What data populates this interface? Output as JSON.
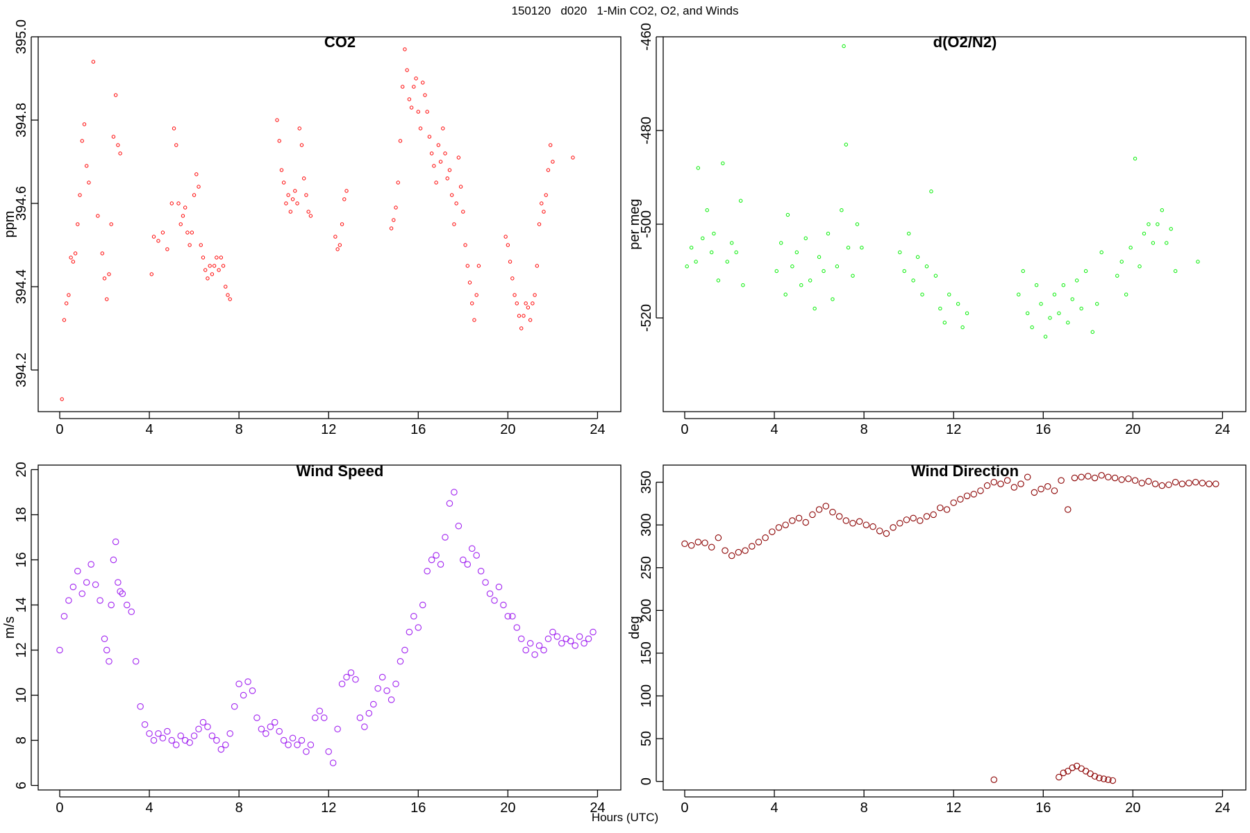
{
  "figure": {
    "title": "150120   d020   1-Min CO2, O2, and Winds",
    "xlabel": "Hours (UTC)"
  },
  "chart_data": [
    {
      "type": "scatter",
      "title": "CO2",
      "xlabel": "",
      "ylabel": "ppm",
      "color": "#ff0000",
      "marker": "small-open-circle",
      "xlim": [
        -0.96,
        25.04
      ],
      "ylim": [
        394.1,
        395.0
      ],
      "xticks": [
        "0",
        "4",
        "8",
        "12",
        "16",
        "20",
        "24"
      ],
      "yticks": [
        "394.2",
        "394.4",
        "394.6",
        "394.8",
        "395.0"
      ],
      "yticks_rotated": true,
      "series": [
        {
          "x": [
            0.1,
            0.2,
            0.3,
            0.4,
            0.5,
            0.6,
            0.7,
            0.8,
            0.9,
            1.0,
            1.1,
            1.2,
            1.3,
            1.5,
            1.7,
            1.9,
            2.0,
            2.1,
            2.2,
            2.3,
            2.4,
            2.5,
            2.6,
            2.7
          ],
          "y": [
            394.13,
            394.32,
            394.36,
            394.38,
            394.47,
            394.46,
            394.48,
            394.55,
            394.62,
            394.75,
            394.79,
            394.69,
            394.65,
            394.94,
            394.57,
            394.48,
            394.42,
            394.37,
            394.43,
            394.55,
            394.76,
            394.86,
            394.74,
            394.72
          ]
        },
        {
          "x": [
            4.1,
            4.2,
            4.4,
            4.6,
            4.8,
            5.0,
            5.1,
            5.2,
            5.3,
            5.4,
            5.5,
            5.6,
            5.7,
            5.8,
            5.9,
            6.0,
            6.1,
            6.2,
            6.3,
            6.4,
            6.5,
            6.6,
            6.7,
            6.8,
            6.9,
            7.0,
            7.1,
            7.2,
            7.3,
            7.4,
            7.5,
            7.6
          ],
          "y": [
            394.43,
            394.52,
            394.51,
            394.53,
            394.49,
            394.6,
            394.78,
            394.74,
            394.6,
            394.55,
            394.57,
            394.59,
            394.53,
            394.5,
            394.53,
            394.62,
            394.67,
            394.64,
            394.5,
            394.47,
            394.44,
            394.42,
            394.45,
            394.43,
            394.45,
            394.47,
            394.44,
            394.47,
            394.45,
            394.4,
            394.38,
            394.37
          ]
        },
        {
          "x": [
            9.7,
            9.8,
            9.9,
            10.0,
            10.1,
            10.2,
            10.3,
            10.4,
            10.5,
            10.6,
            10.7,
            10.8,
            10.9,
            11.0,
            11.1,
            11.2,
            12.3,
            12.4,
            12.5,
            12.6,
            12.7,
            12.8
          ],
          "y": [
            394.8,
            394.75,
            394.68,
            394.65,
            394.6,
            394.62,
            394.58,
            394.61,
            394.63,
            394.6,
            394.78,
            394.74,
            394.66,
            394.62,
            394.58,
            394.57,
            394.52,
            394.49,
            394.5,
            394.55,
            394.61,
            394.63
          ]
        },
        {
          "x": [
            14.8,
            14.9,
            15.0,
            15.1,
            15.2,
            15.3,
            15.4,
            15.5,
            15.6,
            15.7,
            15.8,
            15.9,
            16.0,
            16.1,
            16.2,
            16.3,
            16.4,
            16.5,
            16.6,
            16.7,
            16.8,
            16.9,
            17.0,
            17.1,
            17.2,
            17.3,
            17.4,
            17.5,
            17.6,
            17.7,
            17.8,
            17.9,
            18.0,
            18.1,
            18.2,
            18.3,
            18.4,
            18.5,
            18.6,
            18.7
          ],
          "y": [
            394.54,
            394.56,
            394.59,
            394.65,
            394.75,
            394.88,
            394.97,
            394.92,
            394.85,
            394.83,
            394.88,
            394.9,
            394.82,
            394.78,
            394.89,
            394.86,
            394.82,
            394.76,
            394.72,
            394.69,
            394.65,
            394.74,
            394.7,
            394.78,
            394.72,
            394.66,
            394.68,
            394.62,
            394.55,
            394.6,
            394.71,
            394.64,
            394.58,
            394.5,
            394.45,
            394.41,
            394.36,
            394.32,
            394.38,
            394.45
          ]
        },
        {
          "x": [
            19.9,
            20.0,
            20.1,
            20.2,
            20.3,
            20.4,
            20.5,
            20.6,
            20.7,
            20.8,
            20.9,
            21.0,
            21.1,
            21.2,
            21.3,
            21.4,
            21.5,
            21.6,
            21.7,
            21.8,
            21.9,
            22.0,
            22.9
          ],
          "y": [
            394.52,
            394.5,
            394.46,
            394.42,
            394.38,
            394.36,
            394.33,
            394.3,
            394.33,
            394.36,
            394.35,
            394.32,
            394.36,
            394.38,
            394.45,
            394.55,
            394.6,
            394.58,
            394.62,
            394.68,
            394.74,
            394.7,
            394.71
          ]
        }
      ]
    },
    {
      "type": "scatter",
      "title": "d(O2/N2)",
      "xlabel": "",
      "ylabel": "per meg",
      "color": "#00ee00",
      "marker": "small-open-circle",
      "xlim": [
        -0.96,
        25.04
      ],
      "ylim": [
        -540,
        -460
      ],
      "xticks": [
        "0",
        "4",
        "8",
        "12",
        "16",
        "20",
        "24"
      ],
      "yticks": [
        "-520",
        "-500",
        "-480",
        "-460"
      ],
      "yticks_rotated": true,
      "series": [
        {
          "x": [
            0.1,
            0.3,
            0.5,
            0.6,
            0.8,
            1.0,
            1.2,
            1.3,
            1.5,
            1.7,
            1.9,
            2.1,
            2.3,
            2.5,
            2.6
          ],
          "y": [
            -509,
            -505,
            -508,
            -488,
            -503,
            -497,
            -506,
            -502,
            -512,
            -487,
            -508,
            -504,
            -506,
            -495,
            -513
          ]
        },
        {
          "x": [
            4.1,
            4.3,
            4.5,
            4.6,
            4.8,
            5.0,
            5.2,
            5.4,
            5.6,
            5.8,
            6.0,
            6.2,
            6.4,
            6.6,
            6.8,
            7.0,
            7.1,
            7.2,
            7.3,
            7.5,
            7.7,
            7.9
          ],
          "y": [
            -510,
            -504,
            -515,
            -498,
            -509,
            -506,
            -513,
            -503,
            -512,
            -518,
            -507,
            -510,
            -502,
            -516,
            -509,
            -497,
            -462,
            -483,
            -505,
            -511,
            -500,
            -505
          ]
        },
        {
          "x": [
            9.6,
            9.8,
            10.0,
            10.2,
            10.4,
            10.6,
            10.8,
            11.0,
            11.2,
            11.4,
            11.6,
            11.8,
            12.2,
            12.4,
            12.6
          ],
          "y": [
            -506,
            -510,
            -502,
            -512,
            -507,
            -515,
            -509,
            -493,
            -511,
            -518,
            -521,
            -515,
            -517,
            -522,
            -519
          ]
        },
        {
          "x": [
            14.9,
            15.1,
            15.3,
            15.5,
            15.7,
            15.9,
            16.1,
            16.3,
            16.5,
            16.7,
            16.9,
            17.1,
            17.3,
            17.5,
            17.7,
            17.9,
            18.2,
            18.4,
            18.6
          ],
          "y": [
            -515,
            -510,
            -519,
            -522,
            -513,
            -517,
            -524,
            -520,
            -515,
            -519,
            -513,
            -521,
            -516,
            -512,
            -518,
            -510,
            -523,
            -517,
            -506
          ]
        },
        {
          "x": [
            19.3,
            19.5,
            19.7,
            19.9,
            20.1,
            20.3,
            20.5,
            20.7,
            20.9,
            21.1,
            21.3,
            21.5,
            21.7,
            21.9,
            22.9
          ],
          "y": [
            -511,
            -508,
            -515,
            -505,
            -486,
            -509,
            -502,
            -500,
            -504,
            -500,
            -497,
            -504,
            -501,
            -510,
            -508
          ]
        }
      ]
    },
    {
      "type": "scatter",
      "title": "Wind Speed",
      "xlabel": "",
      "ylabel": "m/s",
      "color": "#a020f0",
      "marker": "open-circle",
      "xlim": [
        -0.96,
        25.04
      ],
      "ylim": [
        5.8,
        20.2
      ],
      "xticks": [
        "0",
        "4",
        "8",
        "12",
        "16",
        "20",
        "24"
      ],
      "yticks": [
        "6",
        "8",
        "10",
        "12",
        "14",
        "16",
        "18",
        "20"
      ],
      "yticks_rotated": true,
      "series": [
        {
          "x": [
            0.0,
            0.2,
            0.4,
            0.6,
            0.8,
            1.0,
            1.2,
            1.4,
            1.6,
            1.8,
            2.0,
            2.1,
            2.2,
            2.3,
            2.4,
            2.5,
            2.6,
            2.7,
            2.8,
            3.0,
            3.2,
            3.4,
            3.6,
            3.8,
            4.0,
            4.2,
            4.4,
            4.6,
            4.8,
            5.0,
            5.2,
            5.4,
            5.6,
            5.8,
            6.0,
            6.2,
            6.4,
            6.6,
            6.8,
            7.0,
            7.2,
            7.4,
            7.6,
            7.8,
            8.0,
            8.2,
            8.4,
            8.6,
            8.8,
            9.0,
            9.2,
            9.4,
            9.6,
            9.8,
            10.0,
            10.2,
            10.4,
            10.6,
            10.8,
            11.0,
            11.2,
            11.4,
            11.6,
            11.8,
            12.0,
            12.2,
            12.4,
            12.6,
            12.8,
            13.0,
            13.2,
            13.4,
            13.6,
            13.8,
            14.0,
            14.2,
            14.4,
            14.6,
            14.8,
            15.0,
            15.2,
            15.4,
            15.6,
            15.8,
            16.0,
            16.2,
            16.4,
            16.6,
            16.8,
            17.0,
            17.2,
            17.4,
            17.6,
            17.8,
            18.0,
            18.2,
            18.4,
            18.6,
            18.8,
            19.0,
            19.2,
            19.4,
            19.6,
            19.8,
            20.0,
            20.2,
            20.4,
            20.6,
            20.8,
            21.0,
            21.2,
            21.4,
            21.6,
            21.8,
            22.0,
            22.2,
            22.4,
            22.6,
            22.8,
            23.0,
            23.2,
            23.4,
            23.6,
            23.8
          ],
          "y": [
            12.0,
            13.5,
            14.2,
            14.8,
            15.5,
            14.5,
            15.0,
            15.8,
            14.9,
            14.2,
            12.5,
            12.0,
            11.5,
            14.0,
            16.0,
            16.8,
            15.0,
            14.6,
            14.5,
            14.0,
            13.7,
            11.5,
            9.5,
            8.7,
            8.3,
            8.0,
            8.3,
            8.1,
            8.4,
            8.0,
            7.8,
            8.2,
            8.0,
            7.9,
            8.2,
            8.5,
            8.8,
            8.6,
            8.2,
            8.0,
            7.6,
            7.8,
            8.3,
            9.5,
            10.5,
            10.0,
            10.6,
            10.2,
            9.0,
            8.5,
            8.3,
            8.6,
            8.8,
            8.4,
            8.0,
            7.8,
            8.1,
            7.8,
            8.0,
            7.5,
            7.8,
            9.0,
            9.3,
            9.0,
            7.5,
            7.0,
            8.5,
            10.5,
            10.8,
            11.0,
            10.7,
            9.0,
            8.6,
            9.2,
            9.6,
            10.3,
            10.8,
            10.2,
            9.8,
            10.5,
            11.5,
            12.0,
            12.8,
            13.5,
            13.0,
            14.0,
            15.5,
            16.0,
            16.2,
            15.8,
            17.0,
            18.5,
            19.0,
            17.5,
            16.0,
            15.8,
            16.5,
            16.2,
            15.5,
            15.0,
            14.5,
            14.2,
            14.8,
            14.0,
            13.5,
            13.5,
            13.0,
            12.5,
            12.0,
            12.3,
            11.8,
            12.2,
            12.0,
            12.5,
            12.8,
            12.6,
            12.3,
            12.5,
            12.4,
            12.2,
            12.6,
            12.3,
            12.5,
            12.8
          ]
        }
      ]
    },
    {
      "type": "scatter",
      "title": "Wind Direction",
      "xlabel": "",
      "ylabel": "deg",
      "color": "#8b0000",
      "marker": "open-circle",
      "xlim": [
        -0.96,
        25.04
      ],
      "ylim": [
        -10,
        370
      ],
      "xticks": [
        "0",
        "4",
        "8",
        "12",
        "16",
        "20",
        "24"
      ],
      "yticks": [
        "0",
        "50",
        "100",
        "150",
        "200",
        "250",
        "300",
        "350"
      ],
      "yticks_rotated": true,
      "series": [
        {
          "x": [
            0.0,
            0.3,
            0.6,
            0.9,
            1.2,
            1.5,
            1.8,
            2.1,
            2.4,
            2.7,
            3.0,
            3.3,
            3.6,
            3.9,
            4.2,
            4.5,
            4.8,
            5.1,
            5.4,
            5.7,
            6.0,
            6.3,
            6.6,
            6.9,
            7.2,
            7.5,
            7.8,
            8.1,
            8.4,
            8.7,
            9.0,
            9.3,
            9.6,
            9.9,
            10.2,
            10.5,
            10.8,
            11.1,
            11.4,
            11.7,
            12.0,
            12.3,
            12.6,
            12.9,
            13.2,
            13.5,
            13.8,
            14.1,
            14.4,
            14.7,
            15.0,
            15.3,
            15.6,
            15.9,
            16.2,
            16.5,
            16.8,
            17.1,
            17.4,
            17.7,
            18.0,
            18.3,
            18.6,
            18.9,
            19.2,
            19.5,
            19.8,
            20.1,
            20.4,
            20.7,
            21.0,
            21.3,
            21.6,
            21.9,
            22.2,
            22.5,
            22.8,
            23.1,
            23.4,
            23.7,
            13.8,
            16.7,
            16.9,
            17.1,
            17.3,
            17.5,
            17.7,
            17.9,
            18.1,
            18.3,
            18.5,
            18.7,
            18.9,
            19.1
          ],
          "y": [
            278,
            276,
            280,
            279,
            274,
            285,
            270,
            264,
            268,
            270,
            275,
            280,
            285,
            292,
            297,
            300,
            305,
            308,
            303,
            312,
            318,
            322,
            315,
            310,
            305,
            302,
            304,
            300,
            298,
            293,
            290,
            297,
            302,
            306,
            308,
            305,
            310,
            312,
            320,
            318,
            326,
            330,
            334,
            336,
            340,
            346,
            350,
            348,
            352,
            344,
            348,
            356,
            338,
            342,
            345,
            340,
            352,
            318,
            355,
            356,
            357,
            355,
            358,
            356,
            355,
            353,
            354,
            352,
            349,
            351,
            348,
            346,
            347,
            350,
            348,
            349,
            350,
            349,
            348,
            348,
            2,
            5,
            10,
            12,
            16,
            18,
            15,
            12,
            9,
            6,
            4,
            3,
            2,
            1
          ]
        }
      ]
    }
  ]
}
